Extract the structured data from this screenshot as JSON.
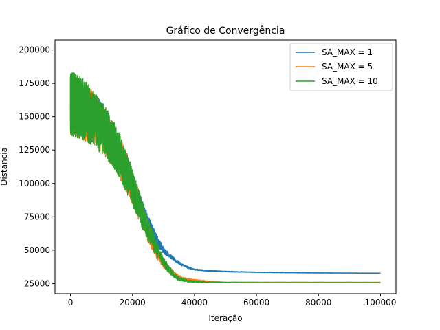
{
  "chart_data": {
    "type": "line",
    "title": "Gráfico de Convergência",
    "xlabel": "Iteração",
    "ylabel": "Distancia",
    "xlim": [
      -5000,
      105000
    ],
    "ylim": [
      17500,
      207500
    ],
    "xticks": [
      0,
      20000,
      40000,
      60000,
      80000,
      100000
    ],
    "xtick_labels": [
      "0",
      "20000",
      "40000",
      "60000",
      "80000",
      "100000"
    ],
    "yticks": [
      25000,
      50000,
      75000,
      100000,
      125000,
      150000,
      175000,
      200000
    ],
    "ytick_labels": [
      "25000",
      "50000",
      "75000",
      "100000",
      "125000",
      "150000",
      "175000",
      "200000"
    ],
    "grid": false,
    "legend_position": "top-right",
    "series": [
      {
        "name": "SA_MAX = 1",
        "color": "#1f77b4",
        "x": [
          0,
          2000,
          4000,
          6000,
          8000,
          10000,
          12000,
          14000,
          16000,
          18000,
          20000,
          22000,
          24000,
          26000,
          28000,
          30000,
          32000,
          34000,
          36000,
          38000,
          40000,
          45000,
          50000,
          60000,
          70000,
          80000,
          90000,
          100000
        ],
        "y": [
          160000,
          158000,
          155000,
          152000,
          148000,
          143000,
          137000,
          130000,
          121000,
          110000,
          98000,
          86000,
          75000,
          65000,
          57000,
          50000,
          46000,
          42000,
          39000,
          37000,
          35500,
          34500,
          34000,
          33500,
          33200,
          33000,
          32900,
          32800
        ],
        "noise": [
          20000,
          20000,
          20000,
          19000,
          19000,
          18000,
          17000,
          16000,
          15000,
          14000,
          12000,
          10000,
          8000,
          6000,
          4000,
          2500,
          1500,
          1200,
          900,
          700,
          500,
          400,
          300,
          200,
          150,
          100,
          80,
          60
        ]
      },
      {
        "name": "SA_MAX = 5",
        "color": "#ff7f0e",
        "x": [
          0,
          2000,
          4000,
          6000,
          8000,
          10000,
          12000,
          14000,
          16000,
          18000,
          20000,
          22000,
          24000,
          26000,
          28000,
          30000,
          32000,
          34000,
          36000,
          38000,
          40000,
          45000,
          50000,
          60000,
          70000,
          80000,
          90000,
          100000
        ],
        "y": [
          158000,
          157000,
          154000,
          151000,
          147000,
          141000,
          135000,
          128000,
          119000,
          108000,
          96000,
          83000,
          70000,
          58000,
          48000,
          40000,
          35000,
          31000,
          29000,
          28000,
          27500,
          26500,
          26000,
          26000,
          26000,
          26000,
          26000,
          26000
        ],
        "noise": [
          22000,
          22000,
          22000,
          21000,
          20000,
          19000,
          18000,
          17000,
          16000,
          15000,
          13000,
          11000,
          9000,
          7000,
          5000,
          3500,
          2500,
          1800,
          1200,
          900,
          700,
          400,
          200,
          100,
          80,
          60,
          50,
          40
        ]
      },
      {
        "name": "SA_MAX = 10",
        "color": "#2ca02c",
        "x": [
          0,
          2000,
          4000,
          6000,
          8000,
          10000,
          12000,
          14000,
          16000,
          18000,
          20000,
          22000,
          24000,
          26000,
          28000,
          30000,
          32000,
          34000,
          36000,
          38000,
          40000,
          45000,
          50000,
          60000,
          70000,
          80000,
          90000,
          100000
        ],
        "y": [
          160000,
          158000,
          156000,
          152000,
          147000,
          142000,
          136000,
          129000,
          120000,
          109000,
          97000,
          84000,
          71000,
          60000,
          50000,
          41000,
          35000,
          30000,
          28000,
          27000,
          26500,
          26000,
          25800,
          25700,
          25700,
          25700,
          25700,
          25700
        ],
        "noise": [
          24000,
          24000,
          23000,
          22000,
          21000,
          20000,
          19000,
          18000,
          17000,
          16000,
          14000,
          12000,
          10000,
          8000,
          6000,
          4000,
          2800,
          2000,
          1300,
          900,
          600,
          300,
          150,
          80,
          60,
          50,
          40,
          30
        ]
      }
    ]
  }
}
